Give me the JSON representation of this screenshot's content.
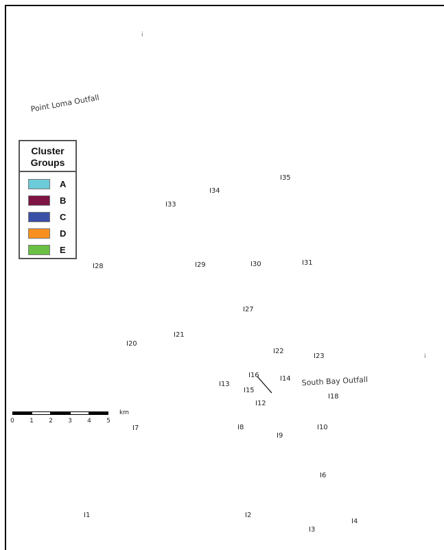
{
  "map": {
    "outfalls": [
      {
        "name": "Point Loma Outfall"
      },
      {
        "name": "South Bay Outfall"
      }
    ],
    "stations": [
      "I1",
      "I2",
      "I3",
      "I4",
      "I6",
      "I7",
      "I8",
      "I9",
      "I10",
      "I12",
      "I13",
      "I14",
      "I15",
      "I16",
      "I18",
      "I20",
      "I21",
      "I22",
      "I23",
      "I27",
      "I28",
      "I29",
      "I30",
      "I31",
      "I33",
      "I34",
      "I35"
    ],
    "edge_marks": [
      "i",
      "i"
    ]
  },
  "legend": {
    "title": "Cluster Groups",
    "items": [
      {
        "label": "A",
        "color": "#6ccbd9"
      },
      {
        "label": "B",
        "color": "#7d1443"
      },
      {
        "label": "C",
        "color": "#3a4fa6"
      },
      {
        "label": "D",
        "color": "#f7901e"
      },
      {
        "label": "E",
        "color": "#6abf45"
      }
    ]
  },
  "scale_bar": {
    "unit": "km",
    "ticks": [
      "0",
      "1",
      "2",
      "3",
      "4",
      "5"
    ]
  }
}
